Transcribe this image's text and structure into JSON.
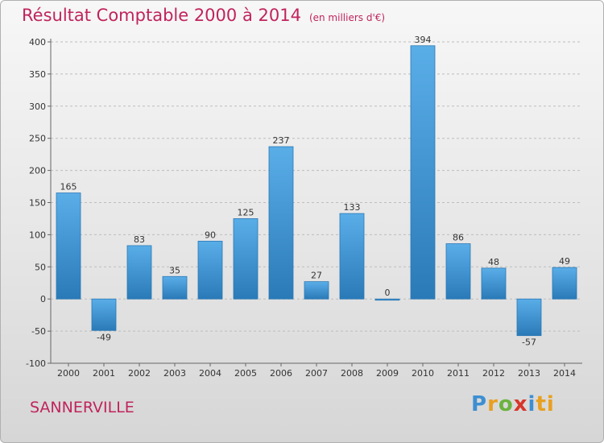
{
  "header": {
    "title": "Résultat Comptable 2000 à 2014",
    "subtitle": "(en milliers d'€)"
  },
  "footer": {
    "city": "SANNERVILLE",
    "logo": [
      "P",
      "r",
      "o",
      "x",
      "i",
      "ti"
    ]
  },
  "chart_data": {
    "type": "bar",
    "title": "Résultat Comptable 2000 à 2014",
    "subtitle": "(en milliers d'€)",
    "xlabel": "",
    "ylabel": "",
    "categories": [
      "2000",
      "2001",
      "2002",
      "2003",
      "2004",
      "2005",
      "2006",
      "2007",
      "2008",
      "2009",
      "2010",
      "2011",
      "2012",
      "2013",
      "2014"
    ],
    "values": [
      165,
      -49,
      83,
      35,
      90,
      125,
      237,
      27,
      133,
      0,
      394,
      86,
      48,
      -57,
      49
    ],
    "ylim": [
      -100,
      400
    ],
    "yticks": [
      -100,
      -50,
      0,
      50,
      100,
      150,
      200,
      250,
      300,
      350,
      400
    ],
    "grid": "horizontal dashed",
    "legend": "none",
    "colors": {
      "bar_light": "#5aaee8",
      "bar_dark": "#2a7ab8",
      "text_accent": "#c0245c"
    }
  }
}
